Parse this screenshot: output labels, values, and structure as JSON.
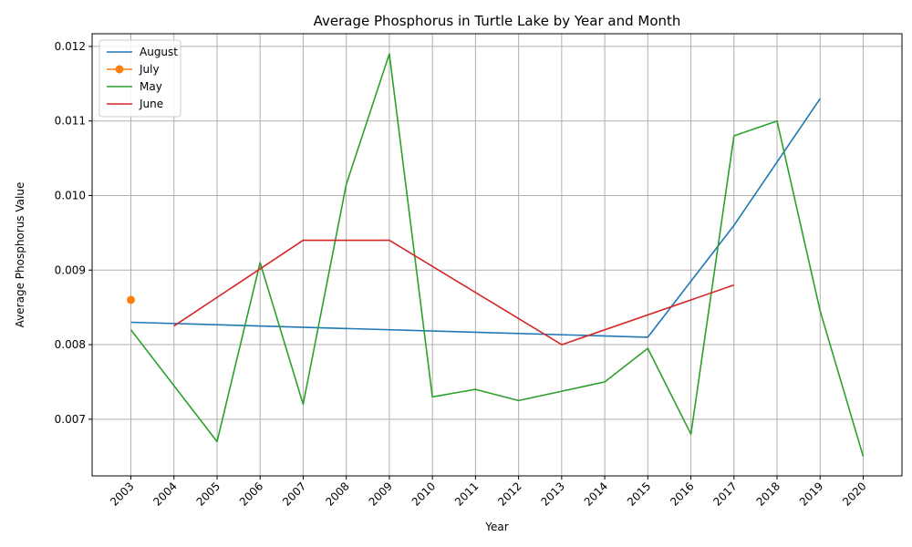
{
  "chart_data": {
    "type": "line",
    "title": "Average Phosphorus in Turtle Lake by Year and Month",
    "xlabel": "Year",
    "ylabel": "Average Phosphorus Value",
    "xlim": [
      2002.1,
      2020.9
    ],
    "ylim": [
      0.00624,
      0.01217
    ],
    "x_ticks": [
      2003,
      2004,
      2005,
      2006,
      2007,
      2008,
      2009,
      2010,
      2011,
      2012,
      2013,
      2014,
      2015,
      2016,
      2017,
      2018,
      2019,
      2020
    ],
    "y_ticks": [
      0.007,
      0.008,
      0.009,
      0.01,
      0.011,
      0.012
    ],
    "y_tick_labels": [
      "0.007",
      "0.008",
      "0.009",
      "0.010",
      "0.011",
      "0.012"
    ],
    "grid": true,
    "legend_position": "top-left",
    "series": [
      {
        "name": "August",
        "color": "#1f77b4",
        "marker": "none",
        "points": [
          [
            2003,
            0.0083
          ],
          [
            2015,
            0.0081
          ],
          [
            2017,
            0.0096
          ],
          [
            2019,
            0.0113
          ]
        ]
      },
      {
        "name": "July",
        "color": "#ff7f0e",
        "marker": "circle",
        "points": [
          [
            2003,
            0.0086
          ]
        ]
      },
      {
        "name": "May",
        "color": "#2ca02c",
        "marker": "none",
        "points": [
          [
            2003,
            0.0082
          ],
          [
            2005,
            0.0067
          ],
          [
            2006,
            0.0091
          ],
          [
            2007,
            0.0072
          ],
          [
            2008,
            0.01015
          ],
          [
            2009,
            0.0119
          ],
          [
            2010,
            0.0073
          ],
          [
            2011,
            0.0074
          ],
          [
            2012,
            0.00725
          ],
          [
            2014,
            0.0075
          ],
          [
            2015,
            0.00795
          ],
          [
            2016,
            0.0068
          ],
          [
            2017,
            0.0108
          ],
          [
            2018,
            0.011
          ],
          [
            2019,
            0.00845
          ],
          [
            2020,
            0.0065
          ]
        ]
      },
      {
        "name": "June",
        "color": "#d62728",
        "marker": "none",
        "points": [
          [
            2004,
            0.00825
          ],
          [
            2007,
            0.0094
          ],
          [
            2009,
            0.0094
          ],
          [
            2013,
            0.008
          ],
          [
            2017,
            0.0088
          ]
        ]
      }
    ]
  }
}
